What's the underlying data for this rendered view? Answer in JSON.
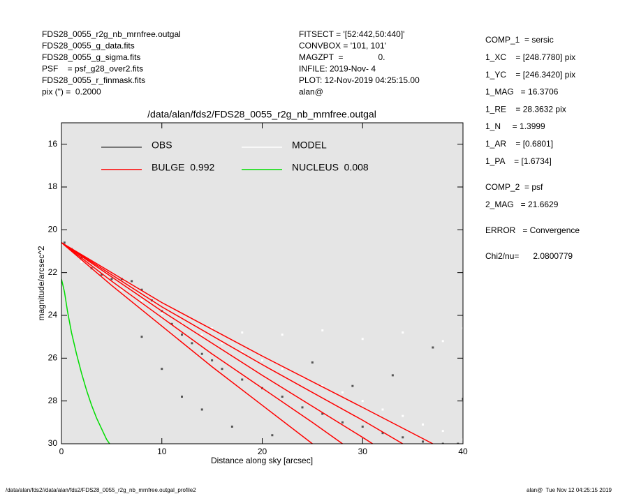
{
  "header": {
    "left": [
      "FDS28_0055_r2g_nb_mrnfree.outgal",
      "FDS28_0055_g_data.fits",
      "FDS28_0055_g_sigma.fits",
      "PSF    = psf_g28_over2.fits",
      "FDS28_0055_r_finmask.fits",
      "pix (\") =  0.2000"
    ],
    "middle": [
      "FITSECT = '[52:442,50:440]'",
      "CONVBOX = '101, 101'",
      "MAGZPT  =               0.",
      "INFILE: 2019-Nov- 4",
      "PLOT: 12-Nov-2019 04:25:15.00",
      "alan@"
    ]
  },
  "components": [
    [
      "COMP_1  = sersic",
      "1_XC    = [248.7780] pix",
      "1_YC    = [246.3420] pix",
      "1_MAG   = 16.3706",
      "1_RE    = 28.3632 pix",
      "1_N     = 1.3999",
      "1_AR    = [0.6801]",
      "1_PA    = [1.6734]"
    ],
    [
      "COMP_2  = psf",
      "2_MAG   = 21.6629"
    ],
    [
      "ERROR   = Convergence"
    ],
    [
      "Chi2/nu=      2.0800779"
    ]
  ],
  "footer": {
    "left": "/data/alan/fds2//data/alan/fds2/FDS28_0055_r2g_nb_mrnfree.outgal_profile2",
    "right": "alan@  Tue Nov 12 04:25:15 2019"
  },
  "chart_data": {
    "type": "scatter",
    "title": "/data/alan/fds2/FDS28_0055_r2g_nb_mrnfree.outgal",
    "xlabel": "Distance along sky [arcsec]",
    "ylabel": "magnitude/arcsec^2",
    "xlim": [
      0,
      40
    ],
    "xticks": [
      0,
      10,
      20,
      30,
      40
    ],
    "ylim": [
      30,
      15
    ],
    "yticks": [
      16,
      18,
      20,
      22,
      24,
      26,
      28,
      30
    ],
    "background": "#e5e5e5",
    "series": [
      {
        "name": "OBS",
        "color": "#555555",
        "style": "points",
        "x": [
          0.3,
          1,
          2,
          3,
          4,
          5,
          6,
          7,
          8,
          9,
          10,
          11,
          12,
          13,
          14,
          15,
          16,
          18,
          20,
          22,
          24,
          26,
          28,
          30,
          32,
          34,
          36,
          38,
          39.5,
          8,
          10,
          12,
          14,
          17,
          21,
          25,
          29,
          33,
          37,
          40
        ],
        "values": [
          20.6,
          20.9,
          21.3,
          21.8,
          22.1,
          22.3,
          22.3,
          22.4,
          22.8,
          23.3,
          23.8,
          24.4,
          24.9,
          25.3,
          25.8,
          26.1,
          26.5,
          27,
          27.4,
          27.8,
          28.3,
          28.6,
          29,
          29.2,
          29.5,
          29.7,
          29.9,
          30,
          30,
          25,
          26.5,
          27.8,
          28.4,
          29.2,
          29.6,
          26.2,
          27.3,
          26.8,
          25.5,
          27.9
        ]
      },
      {
        "name": "MODEL",
        "color": "#ffffff",
        "style": "points",
        "x": [
          0,
          2,
          4,
          6,
          8,
          10,
          12,
          14,
          16,
          18,
          20,
          22,
          24,
          26,
          28,
          30,
          32,
          34,
          36,
          38,
          40,
          15,
          18,
          22,
          26,
          30,
          34,
          38,
          40
        ],
        "values": [
          20.7,
          21.5,
          22.2,
          22.8,
          23.3,
          23.9,
          24.4,
          24.9,
          25.3,
          25.7,
          26.1,
          26.5,
          26.9,
          27.3,
          27.6,
          28,
          28.4,
          28.7,
          29.1,
          29.4,
          29.8,
          24.6,
          24.8,
          24.9,
          24.7,
          25.1,
          24.8,
          25.2,
          24.6
        ]
      },
      {
        "name": "BULGE  0.992",
        "color": "#ff0000",
        "style": "lines",
        "lines": [
          {
            "x": [
              0,
              5,
              10,
              15,
              20,
              25
            ],
            "values": [
              20.6,
              22.6,
              24.5,
              26.4,
              28.2,
              30
            ]
          },
          {
            "x": [
              0,
              5,
              10,
              15,
              20,
              25,
              28
            ],
            "values": [
              20.6,
              22.4,
              24.1,
              25.8,
              27.4,
              29,
              30
            ]
          },
          {
            "x": [
              0,
              10,
              20,
              30,
              31
            ],
            "values": [
              20.6,
              23.8,
              26.8,
              29.7,
              30
            ]
          },
          {
            "x": [
              0,
              10,
              20,
              30,
              34
            ],
            "values": [
              20.6,
              23.6,
              26.3,
              28.9,
              30
            ]
          },
          {
            "x": [
              0,
              10,
              20,
              30,
              37
            ],
            "values": [
              20.6,
              23.4,
              25.9,
              28.3,
              30
            ]
          }
        ]
      },
      {
        "name": "NUCLEUS  0.008",
        "color": "#00dd00",
        "style": "lines",
        "lines": [
          {
            "x": [
              0,
              0.3,
              0.6,
              1,
              1.5,
              2,
              2.5,
              3,
              3.5,
              4,
              4.5,
              4.8
            ],
            "values": [
              22.3,
              22.9,
              23.8,
              24.8,
              25.8,
              26.7,
              27.5,
              28.2,
              28.8,
              29.3,
              29.8,
              30
            ]
          }
        ]
      }
    ]
  }
}
